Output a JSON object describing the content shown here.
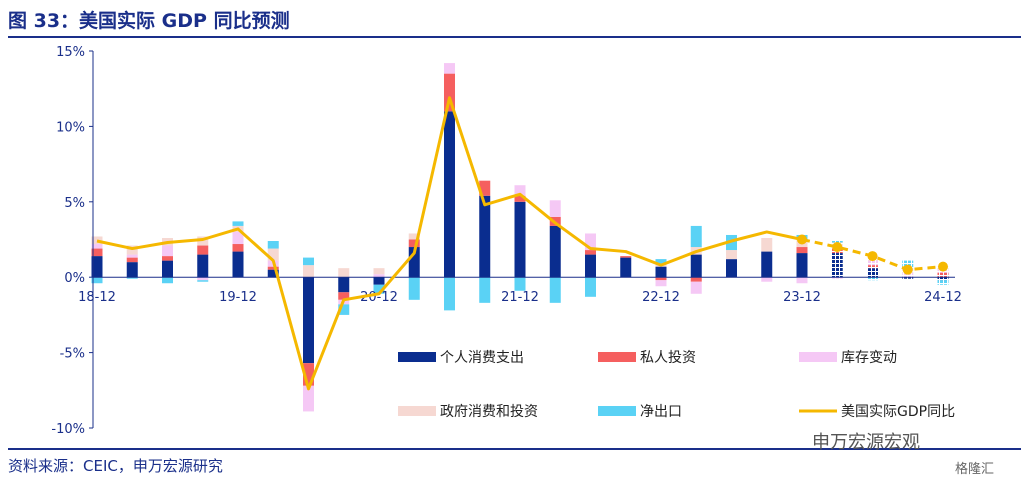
{
  "header": {
    "title": "图 33：美国实际 GDP 同比预测"
  },
  "footer": {
    "source": "资料来源：CEIC，申万宏源研究"
  },
  "watermark": {
    "account": "申万宏源宏观",
    "site": "格隆汇"
  },
  "colors": {
    "consumption": "#0a2d8f",
    "investment": "#f55f5f",
    "inventory": "#f5c8f5",
    "government": "#f6d8d2",
    "netexports": "#5ad2f5",
    "gdp": "#f5b800",
    "axis": "#1a2f8a"
  },
  "chart_data": {
    "type": "bar",
    "stacked": true,
    "x": [
      "18-12",
      "19-03",
      "19-06",
      "19-09",
      "19-12",
      "20-03",
      "20-06",
      "20-09",
      "20-12",
      "21-03",
      "21-06",
      "21-09",
      "21-12",
      "22-03",
      "22-06",
      "22-09",
      "22-12",
      "23-03",
      "23-06",
      "23-09",
      "23-12",
      "24-03",
      "24-06",
      "24-09",
      "24-12"
    ],
    "tick_labels": [
      "18-12",
      "19-12",
      "20-12",
      "21-12",
      "22-12",
      "23-12",
      "24-12"
    ],
    "forecast_from": "23-12",
    "ylim": [
      -10,
      15
    ],
    "yticks": [
      "15%",
      "10%",
      "5%",
      "0%",
      "-5%",
      "-10%"
    ],
    "ytick_values": [
      15,
      10,
      5,
      0,
      -5,
      -10
    ],
    "series": [
      {
        "key": "consumption",
        "name": "个人消费支出",
        "values": [
          1.4,
          1.0,
          1.1,
          1.5,
          1.7,
          0.5,
          -5.7,
          -1.0,
          -0.5,
          2.0,
          11.0,
          5.4,
          5.0,
          3.4,
          1.5,
          1.3,
          0.7,
          1.5,
          1.2,
          1.7,
          1.6,
          1.6,
          0.6,
          -0.1,
          -0.2
        ]
      },
      {
        "key": "investment",
        "name": "私人投资",
        "values": [
          0.5,
          0.3,
          0.3,
          0.6,
          0.5,
          0.2,
          -1.5,
          -0.5,
          0.0,
          0.5,
          2.5,
          1.0,
          0.4,
          0.6,
          0.3,
          0.1,
          -0.2,
          -0.3,
          0.0,
          0.0,
          0.4,
          0.3,
          0.2,
          0.0,
          0.3
        ]
      },
      {
        "key": "inventory",
        "name": "库存变动",
        "values": [
          0.3,
          0.2,
          0.7,
          -0.2,
          0.8,
          0.4,
          -1.7,
          -0.3,
          0.2,
          0.0,
          0.7,
          0.0,
          0.7,
          1.1,
          1.1,
          0.0,
          -0.4,
          -0.8,
          0.0,
          -0.3,
          -0.4,
          -0.1,
          0.3,
          0.3,
          0.2
        ]
      },
      {
        "key": "government",
        "name": "政府消费和投资",
        "values": [
          0.5,
          0.6,
          0.5,
          0.6,
          0.4,
          0.8,
          0.8,
          0.6,
          0.4,
          0.4,
          0.0,
          0.0,
          0.0,
          0.0,
          0.0,
          0.0,
          0.2,
          0.5,
          0.6,
          0.9,
          0.5,
          0.4,
          0.3,
          0.3,
          0.2
        ]
      },
      {
        "key": "netexports",
        "name": "净出口",
        "values": [
          -0.4,
          -0.1,
          -0.4,
          -0.1,
          0.3,
          0.5,
          0.5,
          -0.7,
          -0.6,
          -1.5,
          -2.2,
          -1.7,
          -0.9,
          -1.7,
          -1.3,
          0.0,
          0.3,
          1.4,
          1.0,
          0.0,
          0.3,
          0.1,
          -0.2,
          0.5,
          -0.3
        ]
      }
    ],
    "line": {
      "key": "gdp",
      "name": "美国实际GDP同比",
      "values": [
        2.4,
        1.9,
        2.3,
        2.5,
        3.2,
        1.1,
        -7.4,
        -1.5,
        -1.1,
        1.6,
        11.9,
        4.8,
        5.5,
        3.6,
        1.9,
        1.7,
        0.8,
        1.7,
        2.4,
        3.0,
        2.5,
        2.0,
        1.4,
        0.5,
        0.7
      ]
    },
    "legend": {
      "placement": "lower-right",
      "order": [
        "consumption",
        "investment",
        "inventory",
        "government",
        "netexports",
        "gdp"
      ]
    }
  }
}
